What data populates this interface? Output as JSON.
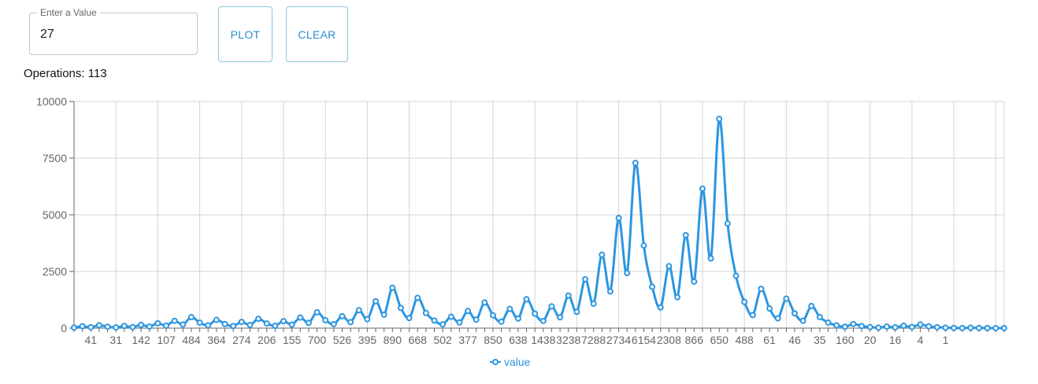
{
  "input": {
    "legend": "Enter a Value",
    "value": "27"
  },
  "buttons": {
    "plot": "PLOT",
    "clear": "CLEAR"
  },
  "operations": {
    "label": "Operations:",
    "count": "113"
  },
  "chart_data": {
    "type": "line",
    "title": "",
    "xlabel": "",
    "ylabel": "",
    "ylim": [
      0,
      10000
    ],
    "yticks": [
      0,
      2500,
      5000,
      7500,
      10000
    ],
    "grid": true,
    "legend_position": "bottom-center",
    "line_color": "#2d96e0",
    "x_tick_labels": [
      "41",
      "31",
      "142",
      "107",
      "484",
      "364",
      "274",
      "206",
      "155",
      "700",
      "526",
      "395",
      "890",
      "668",
      "502",
      "377",
      "850",
      "638",
      "1438",
      "3238",
      "7288",
      "2734",
      "6154",
      "2308",
      "866",
      "650",
      "488",
      "61",
      "46",
      "35",
      "160",
      "20",
      "16",
      "4",
      "1"
    ],
    "series": [
      {
        "name": "value",
        "values": [
          27,
          82,
          41,
          124,
          62,
          31,
          94,
          47,
          142,
          71,
          214,
          107,
          322,
          161,
          484,
          242,
          121,
          364,
          182,
          91,
          274,
          137,
          412,
          206,
          103,
          310,
          155,
          466,
          233,
          700,
          350,
          175,
          526,
          263,
          790,
          395,
          1186,
          593,
          1780,
          890,
          445,
          1336,
          668,
          334,
          167,
          502,
          251,
          754,
          377,
          1132,
          566,
          283,
          850,
          425,
          1276,
          638,
          319,
          958,
          479,
          1438,
          719,
          2158,
          1079,
          3238,
          1619,
          4858,
          2429,
          7288,
          3644,
          1822,
          911,
          2734,
          1367,
          4102,
          2051,
          6154,
          3077,
          9232,
          4616,
          2308,
          1154,
          577,
          1732,
          866,
          433,
          1300,
          650,
          325,
          976,
          488,
          244,
          122,
          61,
          184,
          92,
          46,
          23,
          70,
          35,
          106,
          53,
          160,
          80,
          40,
          20,
          10,
          5,
          16,
          8,
          4,
          2,
          1
        ]
      }
    ]
  }
}
